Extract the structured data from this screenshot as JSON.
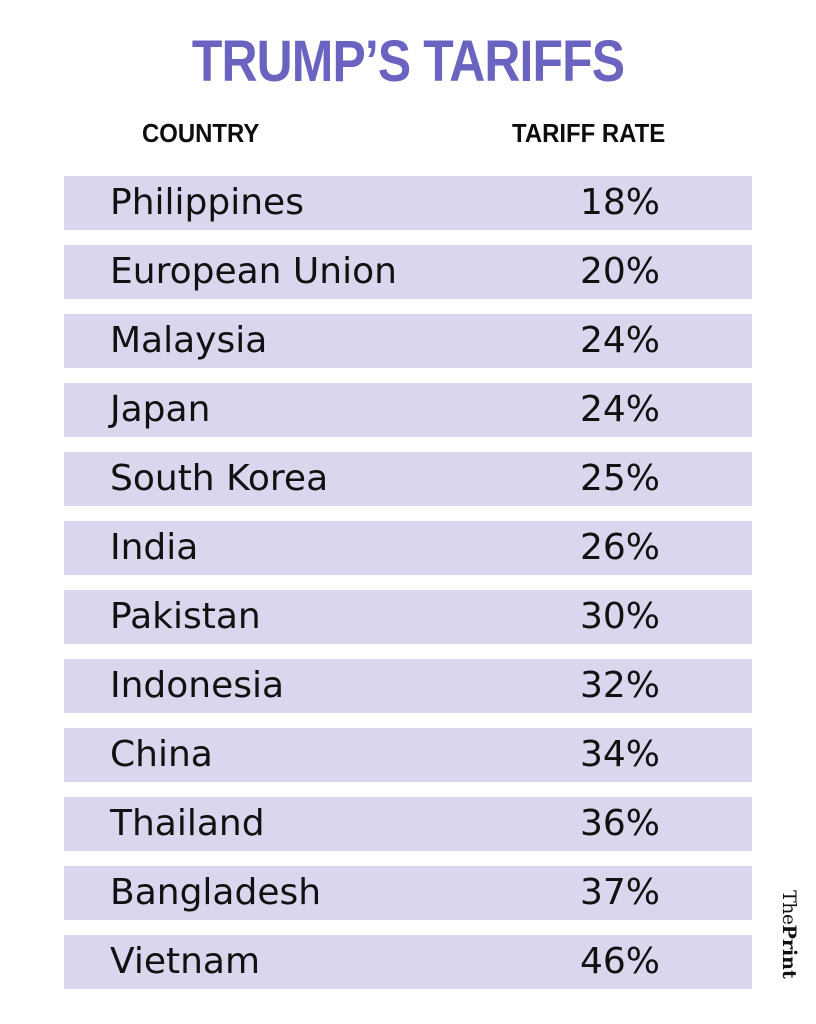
{
  "header": {
    "title": "TRUMP’S TARIFFS",
    "columns": [
      "COUNTRY",
      "TARIFF RATE"
    ]
  },
  "colors": {
    "title": "#6b63c0",
    "row_background": "#d9d7ed",
    "text": "#111111",
    "background": "#ffffff"
  },
  "rows": [
    {
      "country": "Philippines",
      "rate": "18%"
    },
    {
      "country": "European Union",
      "rate": "20%"
    },
    {
      "country": "Malaysia",
      "rate": "24%"
    },
    {
      "country": "Japan",
      "rate": "24%"
    },
    {
      "country": "South Korea",
      "rate": "25%"
    },
    {
      "country": "India",
      "rate": "26%"
    },
    {
      "country": "Pakistan",
      "rate": "30%"
    },
    {
      "country": "Indonesia",
      "rate": "32%"
    },
    {
      "country": "China",
      "rate": "34%"
    },
    {
      "country": "Thailand",
      "rate": "36%"
    },
    {
      "country": "Bangladesh",
      "rate": "37%"
    },
    {
      "country": "Vietnam",
      "rate": "46%"
    }
  ],
  "logo": {
    "part1": "The",
    "part2": "Print"
  },
  "chart_data": {
    "type": "table",
    "title": "TRUMP’S TARIFFS",
    "columns": [
      "COUNTRY",
      "TARIFF RATE"
    ],
    "categories": [
      "Philippines",
      "European Union",
      "Malaysia",
      "Japan",
      "South Korea",
      "India",
      "Pakistan",
      "Indonesia",
      "China",
      "Thailand",
      "Bangladesh",
      "Vietnam"
    ],
    "values": [
      18,
      20,
      24,
      24,
      25,
      26,
      30,
      32,
      34,
      36,
      37,
      46
    ],
    "unit": "%",
    "source_logo": "ThePrint"
  }
}
